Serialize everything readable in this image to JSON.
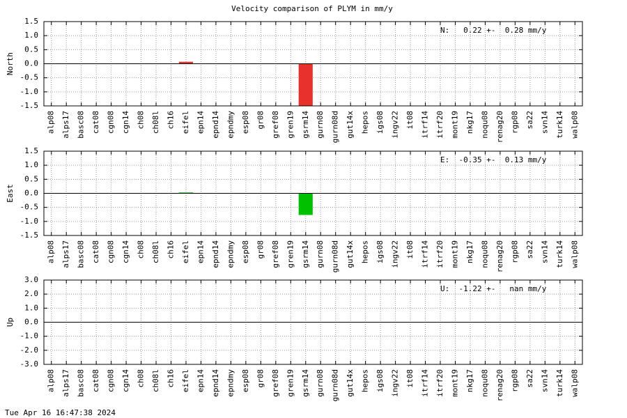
{
  "title": "Velocity comparison of PLYM in mm/y",
  "timestamp": "Tue Apr 16 16:47:38 2024",
  "chart_data": [
    {
      "type": "bar",
      "ylabel": "North",
      "annotation": "N:   0.22 +-  0.28 mm/y",
      "color": "#e8302c",
      "categories": [
        "alp08",
        "alps17",
        "basc08",
        "cat08",
        "cgn08",
        "cgn14",
        "ch08",
        "ch08l",
        "ch16",
        "eifel",
        "epn14",
        "epnd14",
        "epndmy",
        "esp08",
        "gr08",
        "gref08",
        "gren19",
        "gsrm14",
        "gurn08",
        "gurn08d",
        "gut14x",
        "hepos",
        "igs08",
        "ingv22",
        "it08",
        "itrf14",
        "itrf20",
        "mont19",
        "nkg17",
        "noqu08",
        "renag20",
        "rgp08",
        "sa22",
        "svn14",
        "turk14",
        "walp08"
      ],
      "values": [
        null,
        null,
        null,
        null,
        null,
        null,
        null,
        null,
        null,
        0.07,
        null,
        null,
        null,
        null,
        null,
        null,
        null,
        -1.5,
        null,
        null,
        null,
        null,
        null,
        null,
        null,
        null,
        null,
        null,
        null,
        null,
        null,
        null,
        null,
        null,
        null,
        null
      ],
      "ylim": [
        -1.5,
        1.5
      ],
      "yticks": [
        -1.5,
        {
          "value": -1,
          "label": "-1.0"
        },
        -0.5,
        {
          "value": 0,
          "label": "0.0"
        },
        0.5,
        {
          "value": 1,
          "label": "1.0"
        },
        1.5
      ],
      "grid": true
    },
    {
      "type": "bar",
      "ylabel": "East",
      "annotation": "E:  -0.35 +-  0.13 mm/y",
      "color": "#00c000",
      "categories": [
        "alp08",
        "alps17",
        "basc08",
        "cat08",
        "cgn08",
        "cgn14",
        "ch08",
        "ch08l",
        "ch16",
        "eifel",
        "epn14",
        "epnd14",
        "epndmy",
        "esp08",
        "gr08",
        "gref08",
        "gren19",
        "gsrm14",
        "gurn08",
        "gurn08d",
        "gut14x",
        "hepos",
        "igs08",
        "ingv22",
        "it08",
        "itrf14",
        "itrf20",
        "mont19",
        "nkg17",
        "noqu08",
        "renag20",
        "rgp08",
        "sa22",
        "svn14",
        "turk14",
        "walp08"
      ],
      "values": [
        null,
        null,
        null,
        null,
        null,
        null,
        null,
        null,
        null,
        0.03,
        null,
        null,
        null,
        null,
        null,
        null,
        null,
        -0.77,
        null,
        null,
        null,
        null,
        null,
        null,
        null,
        null,
        null,
        null,
        null,
        null,
        null,
        null,
        null,
        null,
        null,
        null
      ],
      "ylim": [
        -1.5,
        1.5
      ],
      "yticks": [
        -1.5,
        {
          "value": -1,
          "label": "-1.0"
        },
        -0.5,
        {
          "value": 0,
          "label": "0.0"
        },
        0.5,
        {
          "value": 1,
          "label": "1.0"
        },
        1.5
      ],
      "grid": true
    },
    {
      "type": "bar",
      "ylabel": "Up",
      "annotation": "U:  -1.22 +-   nan mm/y",
      "color": "#3050e0",
      "categories": [
        "alp08",
        "alps17",
        "basc08",
        "cat08",
        "cgn08",
        "cgn14",
        "ch08",
        "ch08l",
        "ch16",
        "eifel",
        "epn14",
        "epnd14",
        "epndmy",
        "esp08",
        "gr08",
        "gref08",
        "gren19",
        "gsrm14",
        "gurn08",
        "gurn08d",
        "gut14x",
        "hepos",
        "igs08",
        "ingv22",
        "it08",
        "itrf14",
        "itrf20",
        "mont19",
        "nkg17",
        "noqu08",
        "renag20",
        "rgp08",
        "sa22",
        "svn14",
        "turk14",
        "walp08"
      ],
      "values": [
        null,
        null,
        null,
        null,
        null,
        null,
        null,
        null,
        null,
        null,
        null,
        null,
        null,
        null,
        null,
        null,
        null,
        null,
        null,
        null,
        null,
        null,
        null,
        null,
        null,
        null,
        null,
        null,
        null,
        null,
        null,
        null,
        null,
        null,
        null,
        null
      ],
      "ylim": [
        -3,
        3
      ],
      "yticks": [
        {
          "value": -3,
          "label": "-3.0"
        },
        {
          "value": -2,
          "label": "-2.0"
        },
        {
          "value": -1,
          "label": "-1.0"
        },
        {
          "value": 0,
          "label": "0.0"
        },
        {
          "value": 1,
          "label": "1.0"
        },
        {
          "value": 2,
          "label": "2.0"
        },
        {
          "value": 3,
          "label": "3.0"
        }
      ],
      "grid": true
    }
  ]
}
